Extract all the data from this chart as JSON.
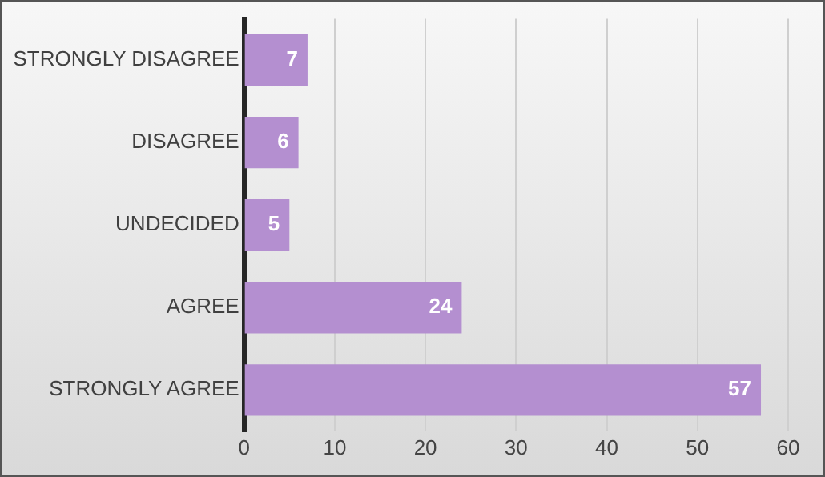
{
  "chart_data": {
    "type": "bar",
    "orientation": "horizontal",
    "categories": [
      "STRONGLY DISAGREE",
      "DISAGREE",
      "UNDECIDED",
      "AGREE",
      "STRONGLY AGREE"
    ],
    "values": [
      7,
      6,
      5,
      24,
      57
    ],
    "color": "#b48fd0",
    "xlim": [
      0,
      60
    ],
    "xticks": [
      0,
      10,
      20,
      30,
      40,
      50,
      60
    ],
    "grid": "x",
    "data_labels": true,
    "legend": false
  }
}
